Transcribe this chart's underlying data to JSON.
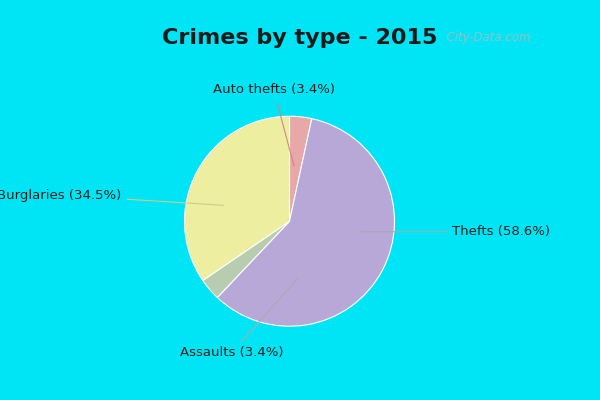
{
  "title": "Crimes by type - 2015",
  "slices": [
    {
      "label": "Auto thefts (3.4%)",
      "value": 3.4,
      "color": "#e8a8a8"
    },
    {
      "label": "Thefts (58.6%)",
      "value": 58.6,
      "color": "#b8a8d8"
    },
    {
      "label": "Assaults (3.4%)",
      "value": 3.4,
      "color": "#b8ccb0"
    },
    {
      "label": "Burglaries (34.5%)",
      "value": 34.5,
      "color": "#eeeea0"
    }
  ],
  "background_cyan": "#00e5f5",
  "background_inner": "#d8ede5",
  "title_fontsize": 16,
  "label_fontsize": 9.5,
  "startangle": 90,
  "watermark": "  City-Data.com"
}
